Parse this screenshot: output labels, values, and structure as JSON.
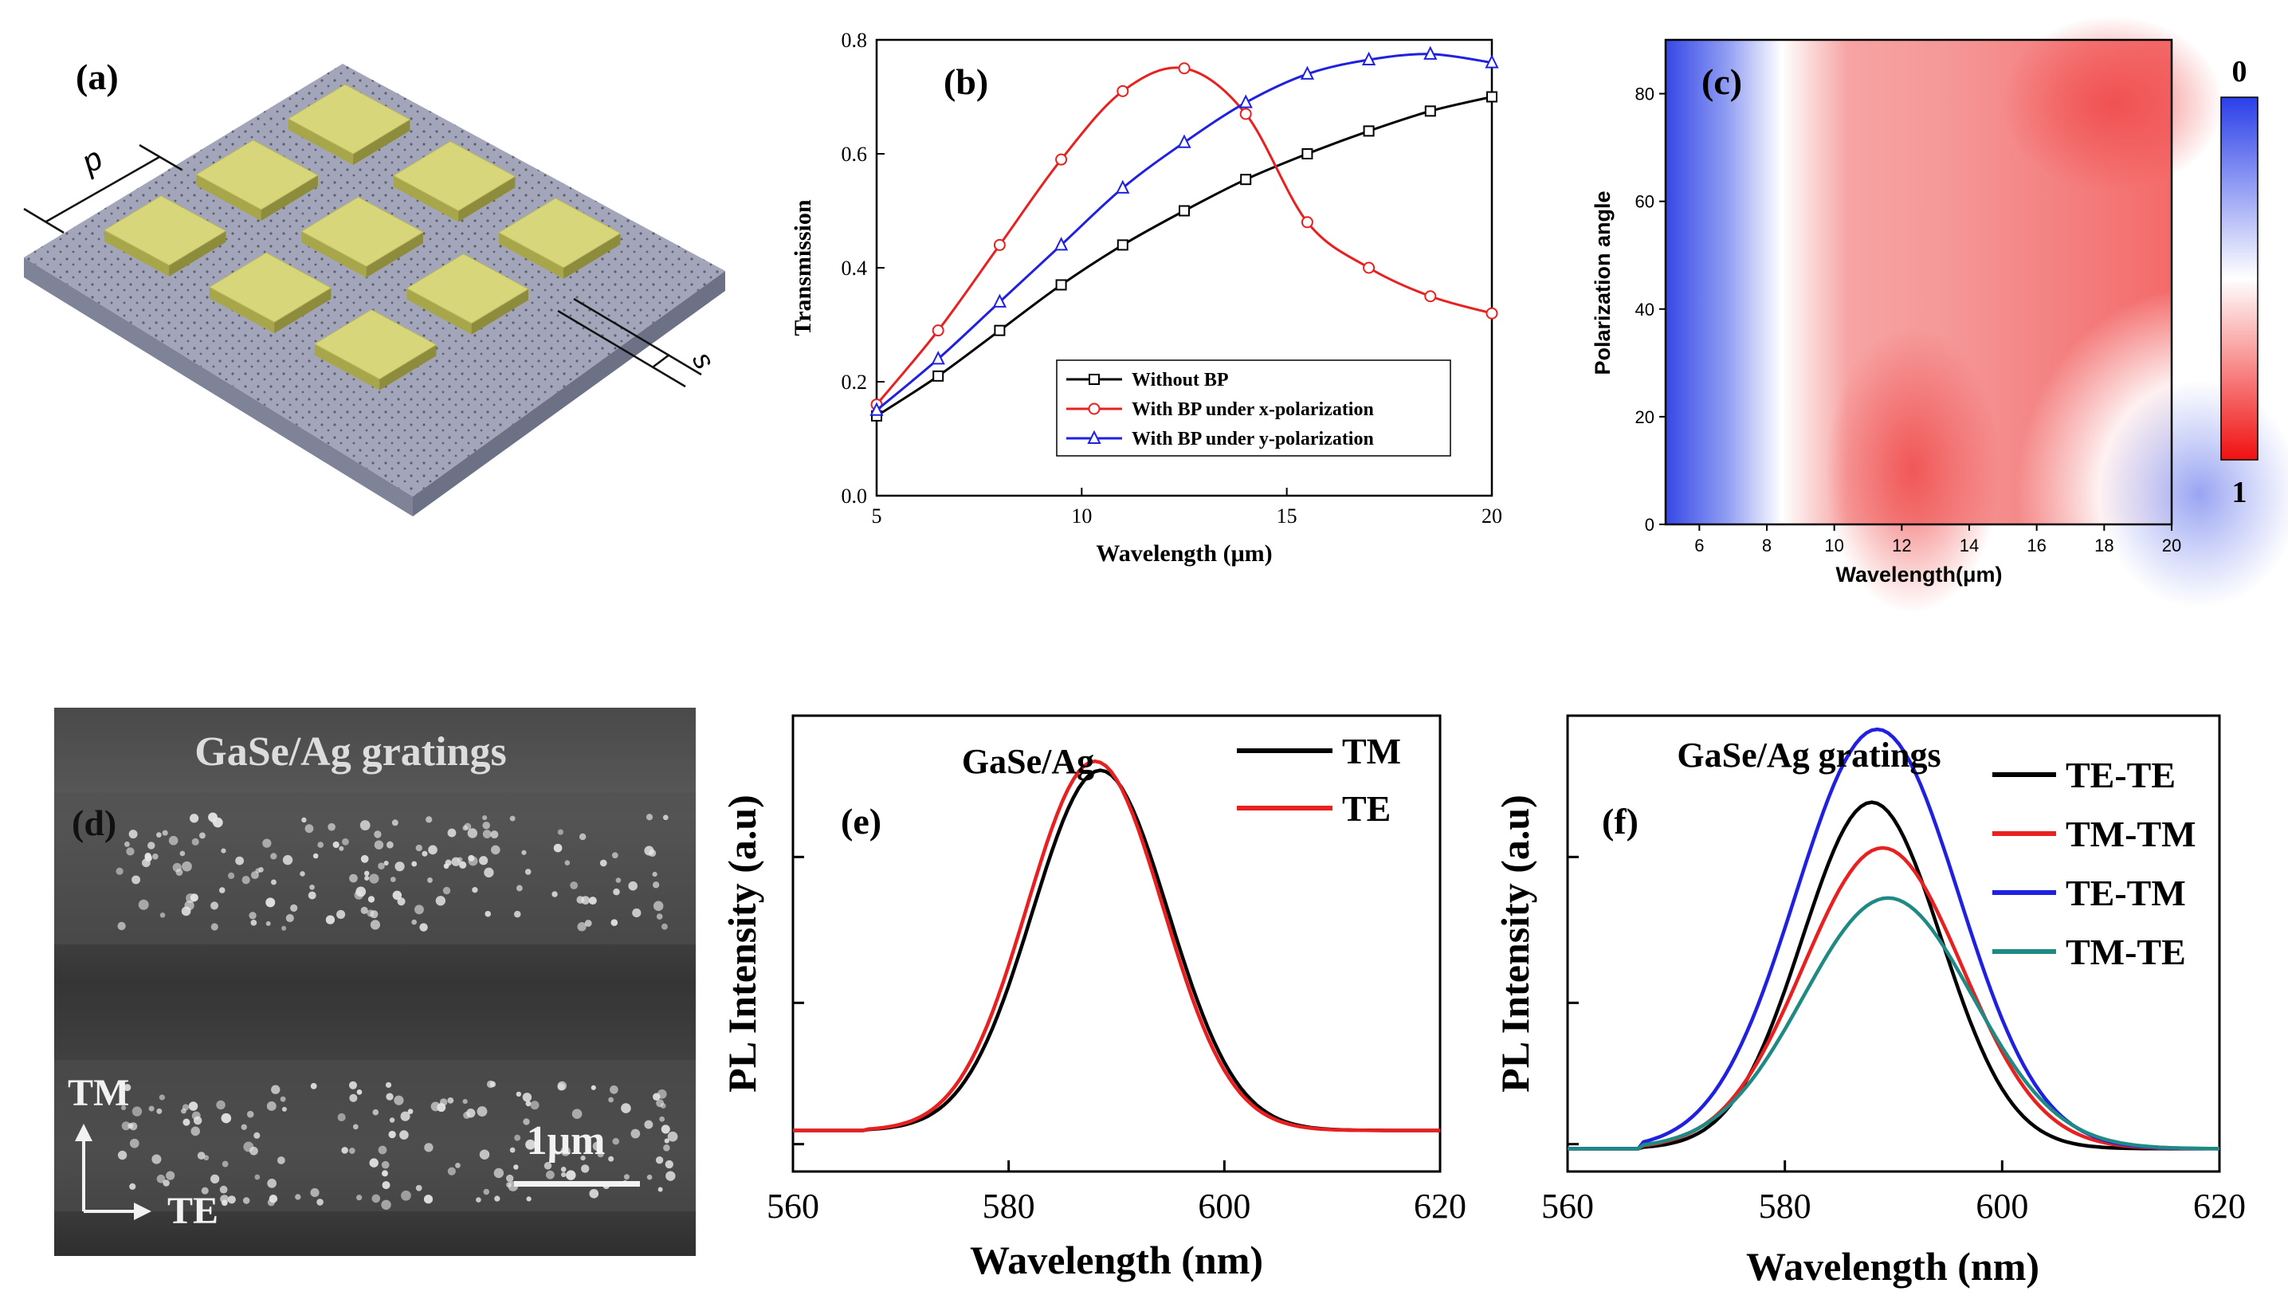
{
  "panels": {
    "a": {
      "label": "(a)",
      "dims": {
        "period": "p",
        "spacing": "s"
      },
      "colors": {
        "substrate": "#9ea2b8",
        "patch": "#d8d67a"
      }
    },
    "d": {
      "label": "(d)",
      "title": "GaSe/Ag gratings",
      "axis_tm": "TM",
      "axis_te": "TE",
      "scalebar": "1μm"
    }
  },
  "chart_data": [
    {
      "id": "b",
      "panel_label": "(b)",
      "type": "line",
      "xlabel": "Wavelength (μm)",
      "ylabel": "Transmission",
      "xlim": [
        5,
        20
      ],
      "ylim": [
        0.0,
        0.8
      ],
      "xticks": [
        "5",
        "10",
        "15",
        "20"
      ],
      "yticks": [
        "0.0",
        "0.2",
        "0.4",
        "0.6",
        "0.8"
      ],
      "legend_position": "bottom-right",
      "series": [
        {
          "name": "Without BP",
          "color": "#000000",
          "marker": "square",
          "x": [
            5,
            6.5,
            8,
            9.5,
            11,
            12.5,
            14,
            15.5,
            17,
            18.5,
            20
          ],
          "y": [
            0.14,
            0.21,
            0.29,
            0.37,
            0.44,
            0.5,
            0.555,
            0.6,
            0.64,
            0.675,
            0.7
          ]
        },
        {
          "name": "With BP under x-polarization",
          "color": "#e8201f",
          "marker": "circle",
          "x": [
            5,
            6.5,
            8,
            9.5,
            11,
            12.5,
            14,
            15.5,
            17,
            18.5,
            20
          ],
          "y": [
            0.16,
            0.29,
            0.44,
            0.59,
            0.71,
            0.75,
            0.67,
            0.48,
            0.4,
            0.35,
            0.32
          ]
        },
        {
          "name": "With BP under y-polarization",
          "color": "#2020e0",
          "marker": "triangle",
          "x": [
            5,
            6.5,
            8,
            9.5,
            11,
            12.5,
            14,
            15.5,
            17,
            18.5,
            20
          ],
          "y": [
            0.15,
            0.24,
            0.34,
            0.44,
            0.54,
            0.62,
            0.69,
            0.74,
            0.765,
            0.775,
            0.76
          ]
        }
      ]
    },
    {
      "id": "c",
      "panel_label": "(c)",
      "type": "heatmap",
      "xlabel": "Wavelength(μm)",
      "ylabel": "Polarization angle",
      "xlim": [
        5,
        20
      ],
      "ylim": [
        0,
        90
      ],
      "xticks": [
        "6",
        "8",
        "10",
        "12",
        "14",
        "16",
        "18",
        "20"
      ],
      "yticks": [
        "0",
        "20",
        "40",
        "60",
        "80"
      ],
      "colorbar": {
        "top_label": "0",
        "bottom_label": "1",
        "colors": [
          "#2a3fe8",
          "#ffffff",
          "#f01010"
        ]
      }
    },
    {
      "id": "e",
      "panel_label": "(e)",
      "type": "line",
      "title": "GaSe/Ag",
      "xlabel": "Wavelength (nm)",
      "ylabel": "PL Intensity (a.u)",
      "xlim": [
        560,
        620
      ],
      "xticks": [
        "560",
        "580",
        "600",
        "620"
      ],
      "legend_position": "top-right",
      "series": [
        {
          "name": "TM",
          "color": "#000000",
          "peak": 588.5,
          "amp": 0.79,
          "sigma": 6.3,
          "base": 0.09
        },
        {
          "name": "TE",
          "color": "#e8201f",
          "peak": 588.0,
          "amp": 0.81,
          "sigma": 6.3,
          "base": 0.09
        }
      ]
    },
    {
      "id": "f",
      "panel_label": "(f)",
      "type": "line",
      "title": "GaSe/Ag gratings",
      "xlabel": "Wavelength (nm)",
      "ylabel": "PL Intensity (a.u)",
      "xlim": [
        560,
        620
      ],
      "xticks": [
        "560",
        "580",
        "600",
        "620"
      ],
      "legend_position": "top-right",
      "series": [
        {
          "name": "TE-TE",
          "color": "#000000",
          "peak": 588,
          "amp": 0.76,
          "sigma": 6.4,
          "base": 0.05
        },
        {
          "name": "TM-TM",
          "color": "#e8201f",
          "peak": 589,
          "amp": 0.66,
          "sigma": 7.3,
          "base": 0.05
        },
        {
          "name": "TE-TM",
          "color": "#2020e0",
          "peak": 588.5,
          "amp": 0.92,
          "sigma": 7.5,
          "base": 0.05
        },
        {
          "name": "TM-TE",
          "color": "#1f8a84",
          "peak": 589.5,
          "amp": 0.55,
          "sigma": 7.8,
          "base": 0.05
        }
      ]
    }
  ]
}
